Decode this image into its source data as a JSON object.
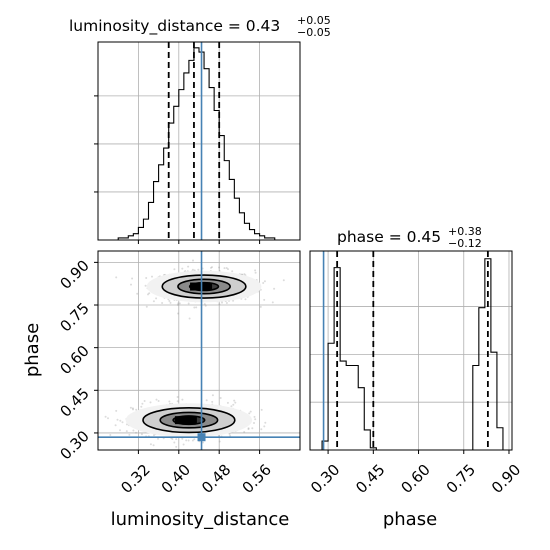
{
  "chart_data": [
    {
      "panel": "hist_luminosity_distance",
      "type": "histogram",
      "title": {
        "name": "luminosity_distance",
        "median": "0.43",
        "plus": "+0.05",
        "minus": "−0.05"
      },
      "x_range": [
        0.24,
        0.64
      ],
      "bin_edges": [
        0.24,
        0.25,
        0.26,
        0.27,
        0.28,
        0.29,
        0.3,
        0.31,
        0.32,
        0.33,
        0.34,
        0.35,
        0.36,
        0.37,
        0.38,
        0.39,
        0.4,
        0.41,
        0.42,
        0.43,
        0.44,
        0.45,
        0.46,
        0.47,
        0.48,
        0.49,
        0.5,
        0.51,
        0.52,
        0.53,
        0.54,
        0.55,
        0.56,
        0.57,
        0.58,
        0.59,
        0.6,
        0.61,
        0.62,
        0.63,
        0.64
      ],
      "counts": [
        0,
        0,
        0,
        0,
        1,
        1,
        2,
        3,
        6,
        10,
        18,
        28,
        36,
        44,
        56,
        64,
        72,
        80,
        86,
        92,
        90,
        82,
        73,
        62,
        50,
        38,
        29,
        20,
        13,
        8,
        5,
        3,
        2,
        1,
        1,
        0,
        0,
        0,
        0,
        0
      ],
      "quantiles": [
        0.38,
        0.43,
        0.48
      ],
      "truth": 0.445,
      "grid": true
    },
    {
      "panel": "hist_phase",
      "type": "histogram",
      "title": {
        "name": "phase",
        "median": "0.45",
        "plus": "+0.38",
        "minus": "−0.12"
      },
      "x_range": [
        0.24,
        0.91
      ],
      "bin_edges": [
        0.24,
        0.26,
        0.28,
        0.3,
        0.32,
        0.34,
        0.36,
        0.38,
        0.4,
        0.42,
        0.44,
        0.46,
        0.48,
        0.5,
        0.52,
        0.54,
        0.56,
        0.58,
        0.6,
        0.62,
        0.64,
        0.66,
        0.68,
        0.7,
        0.72,
        0.74,
        0.76,
        0.78,
        0.8,
        0.82,
        0.84,
        0.86,
        0.88,
        0.9
      ],
      "counts": [
        0,
        0,
        4,
        48,
        82,
        40,
        38,
        38,
        28,
        9,
        1,
        0,
        0,
        0,
        0,
        0,
        0,
        0,
        0,
        0,
        0,
        0,
        0,
        0,
        0,
        0,
        0,
        38,
        64,
        86,
        44,
        10,
        0
      ],
      "quantiles": [
        0.33,
        0.45,
        0.83
      ],
      "truth": 0.285,
      "xticks": [
        "0.30",
        "0.45",
        "0.60",
        "0.75",
        "0.90"
      ],
      "xtick_values": [
        0.3,
        0.45,
        0.6,
        0.75,
        0.9
      ],
      "xlabel": "phase",
      "grid": true
    },
    {
      "panel": "2d_phase_vs_luminosity_distance",
      "type": "scatter",
      "x_range": [
        0.24,
        0.64
      ],
      "y_range": [
        0.24,
        0.94
      ],
      "xticks": [
        "0.32",
        "0.40",
        "0.48",
        "0.56"
      ],
      "xtick_values": [
        0.32,
        0.4,
        0.48,
        0.56
      ],
      "yticks": [
        "0.30",
        "0.45",
        "0.60",
        "0.75",
        "0.90"
      ],
      "ytick_values": [
        0.3,
        0.45,
        0.6,
        0.75,
        0.9
      ],
      "xlabel": "luminosity_distance",
      "ylabel": "phase",
      "modes": [
        {
          "x": 0.45,
          "y": 0.815,
          "sx": 0.05,
          "sy": 0.028
        },
        {
          "x": 0.42,
          "y": 0.345,
          "sx": 0.055,
          "sy": 0.03
        }
      ],
      "truth": {
        "x": 0.445,
        "y": 0.285
      },
      "grid": true
    }
  ]
}
